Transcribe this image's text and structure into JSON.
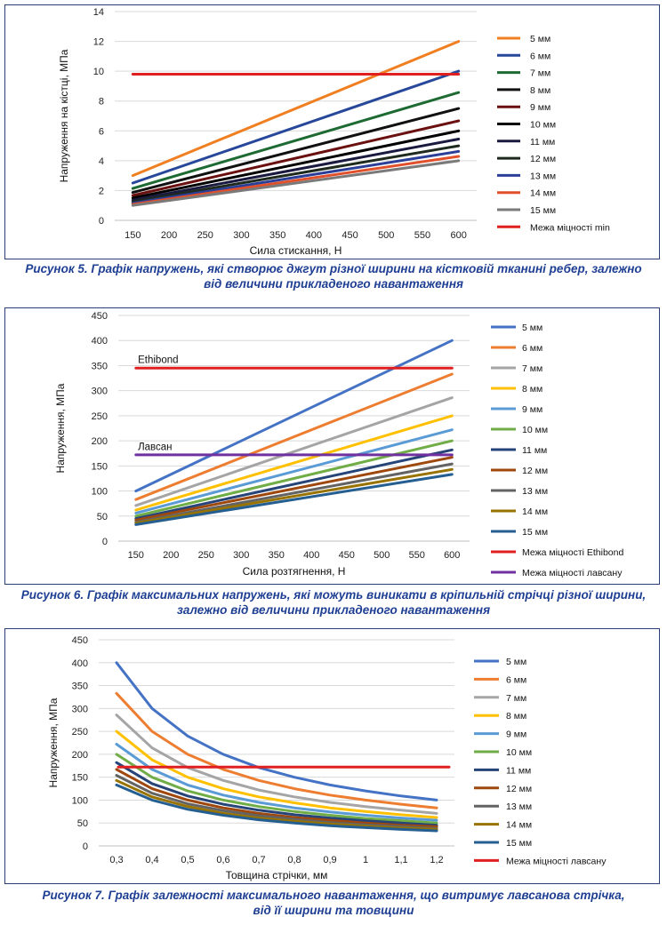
{
  "figures": [
    {
      "caption_line1": "Рисунок 5. Графік напружень, які створює джгут різної ширини на кістковій тканині ребер, залежно",
      "caption_line2": "від величини прикладеного навантаження"
    },
    {
      "caption_line1": "Рисунок 6. Графік максимальних напружень, які можуть виникати в кріпильній стрічці різної ширини,",
      "caption_line2": "залежно від величини прикладеного навантаження"
    },
    {
      "caption_line1": "Рисунок 7. Графік залежності максимального навантаження, що витримує лавсанова стрічка,",
      "caption_line2": "від її ширини та товщини"
    }
  ],
  "chart_data": [
    {
      "type": "line",
      "xlabel": "Сила стискання, Н",
      "ylabel": "Напруження на кістці, МПа",
      "x": [
        150,
        600
      ],
      "x_tick_labels": [
        "150",
        "200",
        "250",
        "300",
        "350",
        "400",
        "450",
        "500",
        "550",
        "600"
      ],
      "ylim": [
        0,
        14
      ],
      "y_tick_labels": [
        "0",
        "2",
        "4",
        "6",
        "8",
        "10",
        "12",
        "14"
      ],
      "grid": "horizontal",
      "legend_position": "right",
      "series": [
        {
          "name": "5 мм",
          "color": "#f07f22",
          "values": [
            3.0,
            12.0
          ]
        },
        {
          "name": "6 мм",
          "color": "#27479a",
          "values": [
            2.5,
            10.0
          ]
        },
        {
          "name": "7 мм",
          "color": "#1e6a33",
          "values": [
            2.14,
            8.57
          ]
        },
        {
          "name": "8 мм",
          "color": "#111111",
          "values": [
            1.87,
            7.5
          ]
        },
        {
          "name": "9 мм",
          "color": "#6b1010",
          "values": [
            1.67,
            6.67
          ]
        },
        {
          "name": "10 мм",
          "color": "#000000",
          "values": [
            1.5,
            6.0
          ]
        },
        {
          "name": "11 мм",
          "color": "#1a1a40",
          "values": [
            1.36,
            5.45
          ]
        },
        {
          "name": "12 мм",
          "color": "#1f2a1f",
          "values": [
            1.25,
            5.0
          ]
        },
        {
          "name": "13 мм",
          "color": "#2b3f99",
          "values": [
            1.15,
            4.62
          ]
        },
        {
          "name": "14 мм",
          "color": "#e0502b",
          "values": [
            1.07,
            4.29
          ]
        },
        {
          "name": "15 мм",
          "color": "#7a7a7a",
          "values": [
            1.0,
            4.0
          ]
        },
        {
          "name": "Межа міцності min",
          "color": "#e02020",
          "values": [
            9.8,
            9.8
          ]
        }
      ]
    },
    {
      "type": "line",
      "xlabel": "Сила розтягнення, Н",
      "ylabel": "Напруження, МПа",
      "x": [
        150,
        600
      ],
      "x_tick_labels": [
        "150",
        "200",
        "250",
        "300",
        "350",
        "400",
        "450",
        "500",
        "550",
        "600"
      ],
      "ylim": [
        0,
        450
      ],
      "y_tick_labels": [
        "0",
        "50",
        "100",
        "150",
        "200",
        "250",
        "300",
        "350",
        "400",
        "450"
      ],
      "grid": "horizontal",
      "legend_position": "right",
      "annotations": [
        {
          "text": "Ethibond",
          "x": 153,
          "y": 355
        },
        {
          "text": "Лавсан",
          "x": 153,
          "y": 182
        }
      ],
      "series": [
        {
          "name": "5 мм",
          "color": "#4472c4",
          "values": [
            100,
            400
          ]
        },
        {
          "name": "6 мм",
          "color": "#ed7d31",
          "values": [
            83,
            333
          ]
        },
        {
          "name": "7 мм",
          "color": "#a5a5a5",
          "values": [
            71,
            286
          ]
        },
        {
          "name": "8 мм",
          "color": "#ffc000",
          "values": [
            62,
            250
          ]
        },
        {
          "name": "9 мм",
          "color": "#5b9bd5",
          "values": [
            56,
            222
          ]
        },
        {
          "name": "10 мм",
          "color": "#70ad47",
          "values": [
            50,
            200
          ]
        },
        {
          "name": "11 мм",
          "color": "#264478",
          "values": [
            45,
            182
          ]
        },
        {
          "name": "12 мм",
          "color": "#9e480e",
          "values": [
            42,
            167
          ]
        },
        {
          "name": "13 мм",
          "color": "#636363",
          "values": [
            38,
            154
          ]
        },
        {
          "name": "14 мм",
          "color": "#997300",
          "values": [
            36,
            143
          ]
        },
        {
          "name": "15 мм",
          "color": "#255e91",
          "values": [
            33,
            133
          ]
        },
        {
          "name": "Межа міцності Ethibond",
          "color": "#e02020",
          "values": [
            345,
            345
          ]
        },
        {
          "name": "Межа міцності лавсану",
          "color": "#7030a0",
          "values": [
            172,
            172
          ]
        }
      ]
    },
    {
      "type": "line",
      "xlabel": "Товщина стрічки, мм",
      "ylabel": "Напруження, МПа",
      "categories": [
        "0,3",
        "0,4",
        "0,5",
        "0,6",
        "0,7",
        "0,8",
        "0,9",
        "1",
        "1,1",
        "1,2"
      ],
      "ylim": [
        0,
        450
      ],
      "y_tick_labels": [
        "0",
        "50",
        "100",
        "150",
        "200",
        "250",
        "300",
        "350",
        "400",
        "450"
      ],
      "grid": "horizontal",
      "legend_position": "right",
      "series": [
        {
          "name": "5 мм",
          "color": "#4472c4",
          "values": [
            400,
            300,
            240,
            200,
            171,
            150,
            133,
            120,
            109,
            100
          ]
        },
        {
          "name": "6 мм",
          "color": "#ed7d31",
          "values": [
            333,
            250,
            200,
            167,
            143,
            125,
            111,
            100,
            91,
            83
          ]
        },
        {
          "name": "7 мм",
          "color": "#a5a5a5",
          "values": [
            286,
            214,
            171,
            143,
            122,
            107,
            95,
            86,
            78,
            71
          ]
        },
        {
          "name": "8 мм",
          "color": "#ffc000",
          "values": [
            250,
            188,
            150,
            125,
            107,
            94,
            83,
            75,
            68,
            62
          ]
        },
        {
          "name": "9 мм",
          "color": "#5b9bd5",
          "values": [
            222,
            167,
            133,
            111,
            95,
            83,
            74,
            67,
            61,
            56
          ]
        },
        {
          "name": "10 мм",
          "color": "#70ad47",
          "values": [
            200,
            150,
            120,
            100,
            86,
            75,
            67,
            60,
            55,
            50
          ]
        },
        {
          "name": "11 мм",
          "color": "#264478",
          "values": [
            182,
            136,
            109,
            91,
            78,
            68,
            61,
            55,
            50,
            45
          ]
        },
        {
          "name": "12 мм",
          "color": "#9e480e",
          "values": [
            167,
            125,
            100,
            83,
            71,
            62,
            56,
            50,
            45,
            42
          ]
        },
        {
          "name": "13 мм",
          "color": "#636363",
          "values": [
            154,
            115,
            92,
            77,
            66,
            58,
            51,
            46,
            42,
            38
          ]
        },
        {
          "name": "14 мм",
          "color": "#997300",
          "values": [
            143,
            107,
            86,
            71,
            61,
            54,
            48,
            43,
            39,
            36
          ]
        },
        {
          "name": "15 мм",
          "color": "#255e91",
          "values": [
            133,
            100,
            80,
            67,
            57,
            50,
            44,
            40,
            36,
            33
          ]
        },
        {
          "name": "Межа міцності лавсану",
          "color": "#e02020",
          "values": [
            172,
            172,
            172,
            172,
            172,
            172,
            172,
            172,
            172,
            172
          ]
        }
      ]
    }
  ]
}
